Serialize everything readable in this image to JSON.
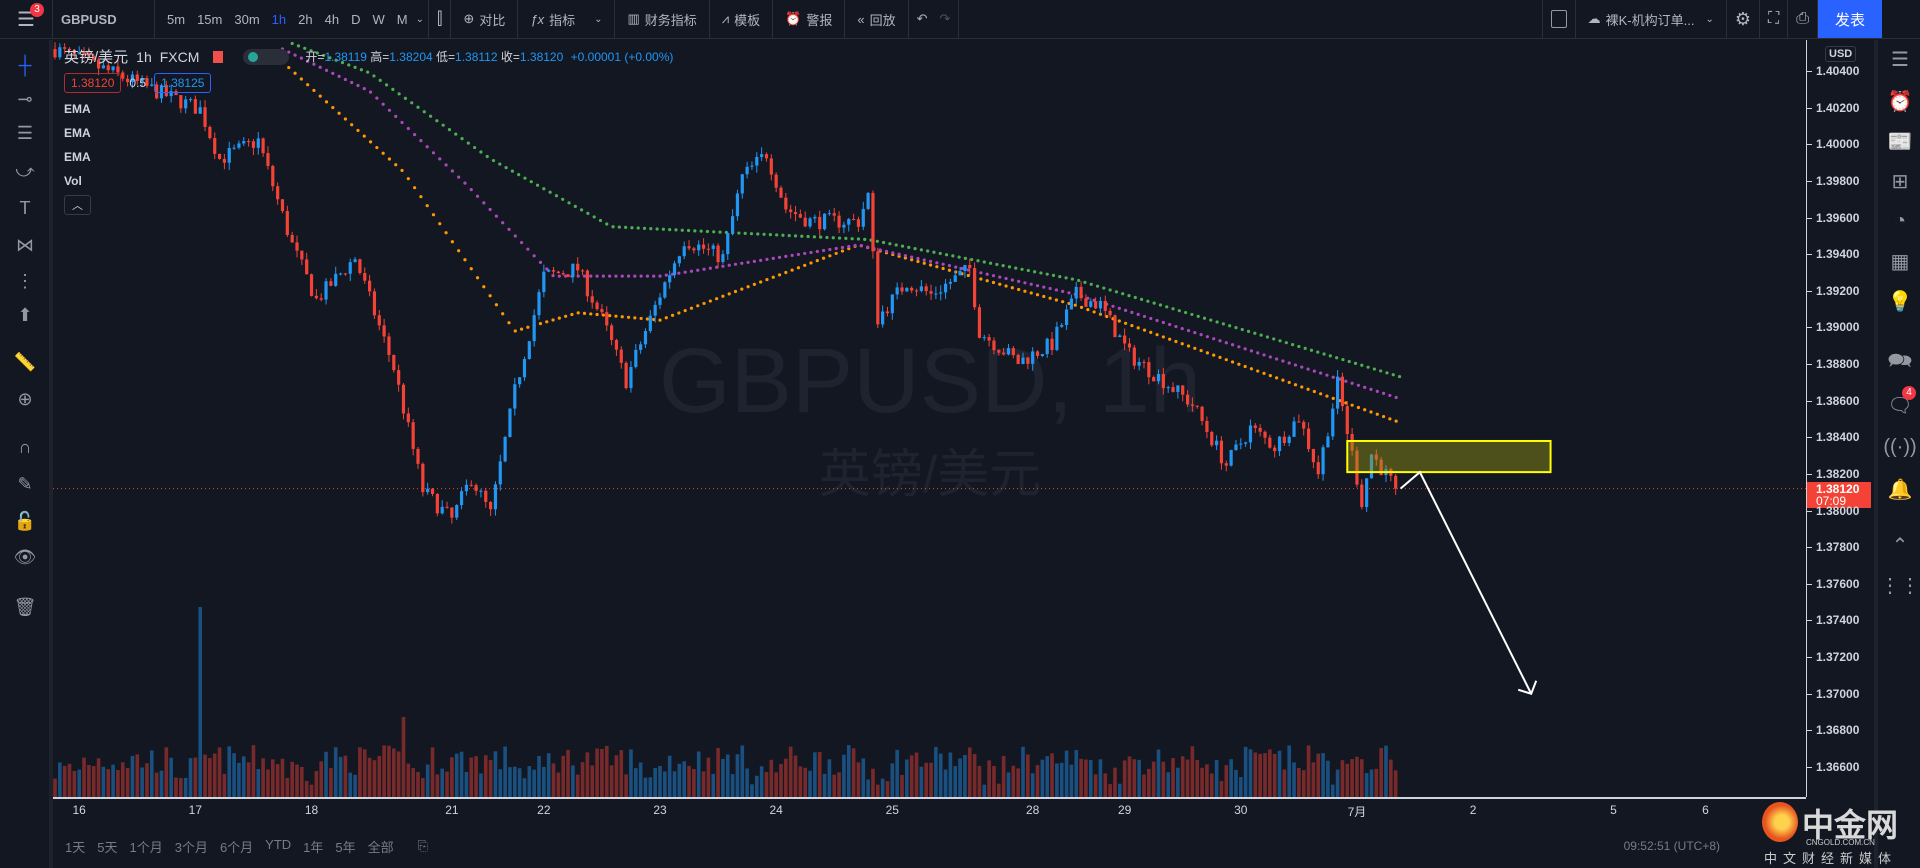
{
  "toolbar": {
    "menu_badge": "3",
    "symbol": "GBPUSD",
    "intervals": [
      "5m",
      "15m",
      "30m",
      "1h",
      "2h",
      "4h",
      "D",
      "W",
      "M"
    ],
    "active_interval": "1h",
    "compare": "对比",
    "indicators": "指标",
    "financials": "财务指标",
    "templates": "模板",
    "alert": "警报",
    "replay": "回放",
    "layout_name": "裸K-机构订单...",
    "publish": "发表"
  },
  "legend": {
    "title": "英镑/美元",
    "interval": "1h",
    "exchange": "FXCM",
    "open_label": "开=",
    "open": "1.38119",
    "high_label": "高=",
    "high": "1.38204",
    "low_label": "低=",
    "low": "1.38112",
    "close_label": "收=",
    "close": "1.38120",
    "change": "+0.00001 (+0.00%)",
    "bid": "1.38120",
    "spread": "0.5",
    "ask": "1.38125",
    "indicators": [
      "EMA",
      "EMA",
      "EMA",
      "Vol"
    ]
  },
  "watermark": {
    "line1": "GBPUSD, 1h",
    "line2": "英镑/美元"
  },
  "price_axis": {
    "currency": "USD",
    "ticks": [
      "1.40400",
      "1.40200",
      "1.40000",
      "1.39800",
      "1.39600",
      "1.39400",
      "1.39200",
      "1.39000",
      "1.38800",
      "1.38600",
      "1.38400",
      "1.38200",
      "1.38000",
      "1.37800",
      "1.37600",
      "1.37400",
      "1.37200",
      "1.37000",
      "1.36800",
      "1.36600"
    ],
    "current_price": "1.38120",
    "countdown": "07:09"
  },
  "right_sidebar": {
    "chat_badge": "4"
  },
  "bottom": {
    "ranges": [
      "1天",
      "5天",
      "1个月",
      "3个月",
      "6个月",
      "YTD",
      "1年",
      "5年",
      "全部"
    ],
    "clock": "09:52:51 (UTC+8)"
  },
  "logo": {
    "name": "中金网",
    "url_text": "CNGOLD.COM.CN",
    "tagline": "中文财经新媒体"
  },
  "colors": {
    "up": "#2196f3",
    "down": "#f44336",
    "ema_fast": "#ff9800",
    "ema_mid": "#9c27b0",
    "ema_slow": "#4caf50",
    "zone": "#ffff00",
    "accent": "#2962ff"
  },
  "chart_data": {
    "type": "candlestick",
    "symbol": "GBPUSD",
    "timeframe": "1h",
    "ylim": [
      1.365,
      1.406
    ],
    "x_ticks": [
      {
        "label": "16",
        "bar": 5
      },
      {
        "label": "17",
        "bar": 29
      },
      {
        "label": "18",
        "bar": 53
      },
      {
        "label": "21",
        "bar": 82
      },
      {
        "label": "22",
        "bar": 101
      },
      {
        "label": "23",
        "bar": 125
      },
      {
        "label": "24",
        "bar": 149
      },
      {
        "label": "25",
        "bar": 173
      },
      {
        "label": "28",
        "bar": 202
      },
      {
        "label": "29",
        "bar": 221
      },
      {
        "label": "30",
        "bar": 245
      },
      {
        "label": "7月",
        "bar": 269
      },
      {
        "label": "2",
        "bar": 293
      },
      {
        "label": "5",
        "bar": 322
      },
      {
        "label": "6",
        "bar": 341
      }
    ],
    "price_path": [
      [
        0,
        1.4052
      ],
      [
        30,
        1.4019
      ],
      [
        34,
        1.3992
      ],
      [
        42,
        1.4002
      ],
      [
        49,
        1.3945
      ],
      [
        54,
        1.3915
      ],
      [
        62,
        1.3938
      ],
      [
        70,
        1.3878
      ],
      [
        76,
        1.3811
      ],
      [
        82,
        1.3795
      ],
      [
        86,
        1.3818
      ],
      [
        90,
        1.3798
      ],
      [
        95,
        1.3865
      ],
      [
        101,
        1.3928
      ],
      [
        108,
        1.3932
      ],
      [
        113,
        1.3905
      ],
      [
        118,
        1.3871
      ],
      [
        125,
        1.3918
      ],
      [
        130,
        1.3948
      ],
      [
        138,
        1.3938
      ],
      [
        142,
        1.3982
      ],
      [
        147,
        1.3995
      ],
      [
        151,
        1.3965
      ],
      [
        156,
        1.3958
      ],
      [
        166,
        1.3958
      ],
      [
        168,
        1.3972
      ],
      [
        170,
        1.3905
      ],
      [
        176,
        1.3925
      ],
      [
        181,
        1.3918
      ],
      [
        189,
        1.3932
      ],
      [
        191,
        1.3898
      ],
      [
        199,
        1.3881
      ],
      [
        206,
        1.3891
      ],
      [
        211,
        1.3918
      ],
      [
        216,
        1.3912
      ],
      [
        222,
        1.3885
      ],
      [
        229,
        1.3871
      ],
      [
        235,
        1.3858
      ],
      [
        242,
        1.3825
      ],
      [
        247,
        1.3845
      ],
      [
        252,
        1.3835
      ],
      [
        257,
        1.3851
      ],
      [
        261,
        1.3821
      ],
      [
        265,
        1.3869
      ],
      [
        270,
        1.3805
      ],
      [
        272,
        1.3831
      ],
      [
        277,
        1.3812
      ]
    ],
    "ema_series": [
      {
        "name": "EMA fast",
        "color": "#ff9800",
        "points": [
          [
            47,
            1.4045
          ],
          [
            72,
            1.3985
          ],
          [
            95,
            1.3898
          ],
          [
            108,
            1.3908
          ],
          [
            125,
            1.3904
          ],
          [
            166,
            1.3945
          ],
          [
            211,
            1.3912
          ],
          [
            278,
            1.3848
          ]
        ]
      },
      {
        "name": "EMA mid",
        "color": "#ab47bc",
        "points": [
          [
            47,
            1.4052
          ],
          [
            65,
            1.4029
          ],
          [
            85,
            1.3978
          ],
          [
            103,
            1.3928
          ],
          [
            125,
            1.3928
          ],
          [
            166,
            1.3945
          ],
          [
            211,
            1.3918
          ],
          [
            278,
            1.3861
          ]
        ]
      },
      {
        "name": "EMA slow",
        "color": "#4caf50",
        "points": [
          [
            49,
            1.4055
          ],
          [
            65,
            1.4039
          ],
          [
            90,
            1.3992
          ],
          [
            115,
            1.3955
          ],
          [
            168,
            1.3948
          ],
          [
            211,
            1.3926
          ],
          [
            278,
            1.3873
          ]
        ]
      }
    ],
    "zone": {
      "top": 1.3838,
      "bottom": 1.3821,
      "from_bar": 267,
      "to_bar": 309
    },
    "arrow": {
      "points": [
        [
          278,
          1.3812
        ],
        [
          282,
          1.3821
        ],
        [
          305,
          1.37
        ]
      ],
      "direction": "down"
    }
  }
}
